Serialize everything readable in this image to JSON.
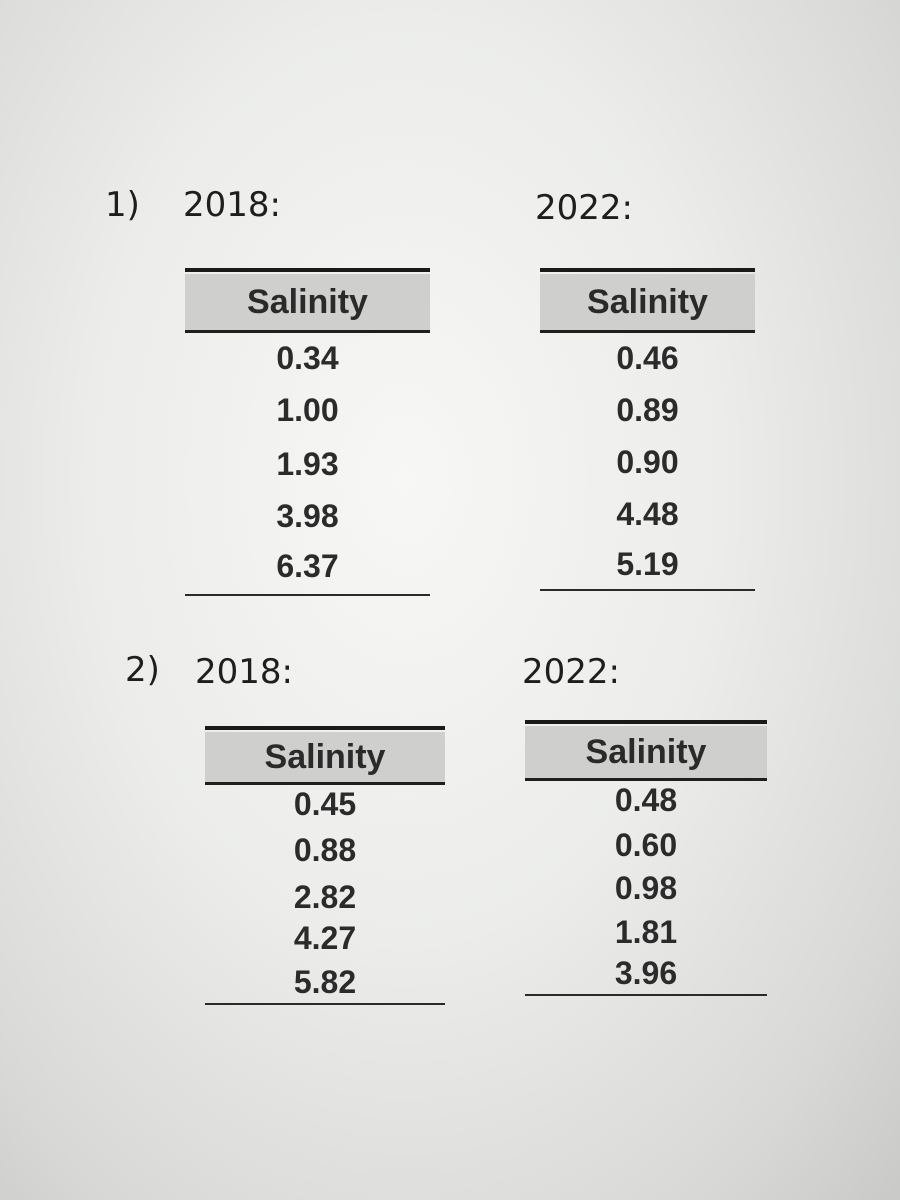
{
  "problems": [
    {
      "label": "1)",
      "groups": [
        {
          "year": "2018:",
          "table": {
            "header": "Salinity",
            "rows": [
              "0.34",
              "1.00",
              "1.93",
              "3.98",
              "6.37"
            ]
          }
        },
        {
          "year": "2022:",
          "table": {
            "header": "Salinity",
            "rows": [
              "0.46",
              "0.89",
              "0.90",
              "4.48",
              "5.19"
            ]
          }
        }
      ]
    },
    {
      "label": "2)",
      "groups": [
        {
          "year": "2018:",
          "table": {
            "header": "Salinity",
            "rows": [
              "0.45",
              "0.88",
              "2.82",
              "4.27",
              "5.82"
            ]
          }
        },
        {
          "year": "2022:",
          "table": {
            "header": "Salinity",
            "rows": [
              "0.48",
              "0.60",
              "0.98",
              "1.81",
              "3.96"
            ]
          }
        }
      ]
    }
  ]
}
